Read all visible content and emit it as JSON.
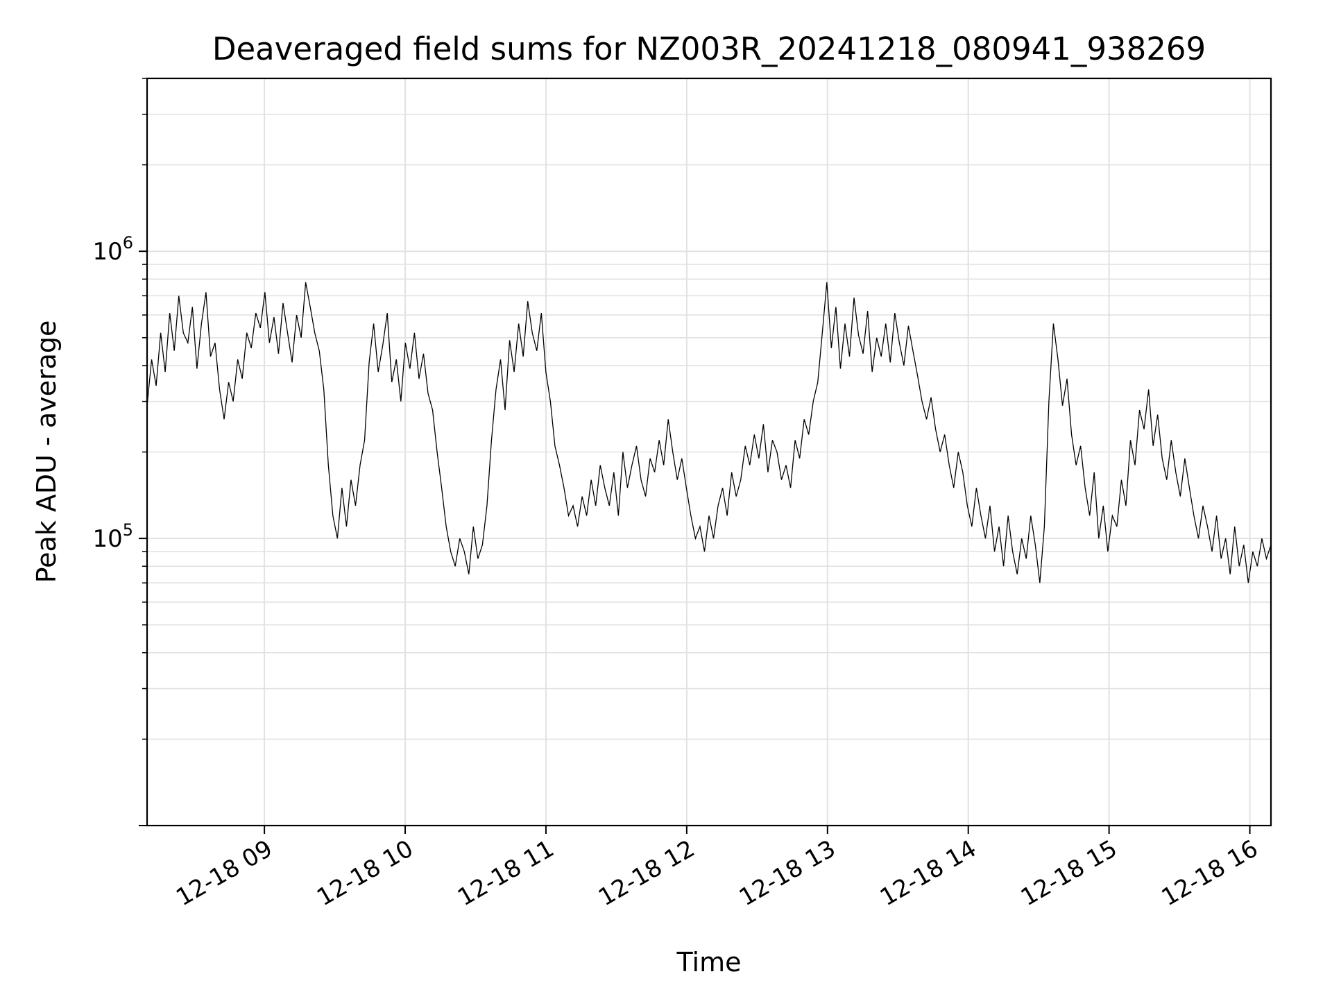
{
  "chart_data": {
    "type": "line",
    "title": "Deaveraged field sums for NZ003R_20241218_080941_938269",
    "xlabel": "Time",
    "ylabel": "Peak ADU - average",
    "yscale": "log",
    "xlim": [
      "2024-12-18 08:10",
      "2024-12-18 16:09"
    ],
    "ylim": [
      10000,
      4000000
    ],
    "grid": true,
    "line_color": "#000000",
    "x_ticks": [
      {
        "value": "2024-12-18 09:00",
        "label": "12-18 09"
      },
      {
        "value": "2024-12-18 10:00",
        "label": "12-18 10"
      },
      {
        "value": "2024-12-18 11:00",
        "label": "12-18 11"
      },
      {
        "value": "2024-12-18 12:00",
        "label": "12-18 12"
      },
      {
        "value": "2024-12-18 13:00",
        "label": "12-18 13"
      },
      {
        "value": "2024-12-18 14:00",
        "label": "12-18 14"
      },
      {
        "value": "2024-12-18 15:00",
        "label": "12-18 15"
      },
      {
        "value": "2024-12-18 16:00",
        "label": "12-18 16"
      }
    ],
    "y_ticks": [
      {
        "value": 100000,
        "base": "10",
        "exp": "5"
      },
      {
        "value": 1000000,
        "base": "10",
        "exp": "6"
      }
    ],
    "series": [
      {
        "x_start": "2024-12-18 08:10",
        "x_end": "2024-12-18 16:09",
        "values": [
          290000,
          420000,
          340000,
          520000,
          380000,
          610000,
          450000,
          700000,
          520000,
          480000,
          640000,
          390000,
          560000,
          720000,
          430000,
          480000,
          330000,
          260000,
          350000,
          300000,
          420000,
          360000,
          520000,
          460000,
          610000,
          540000,
          720000,
          480000,
          590000,
          440000,
          660000,
          520000,
          410000,
          600000,
          500000,
          780000,
          640000,
          520000,
          450000,
          330000,
          180000,
          120000,
          100000,
          150000,
          110000,
          160000,
          130000,
          180000,
          220000,
          410000,
          560000,
          380000,
          470000,
          610000,
          350000,
          420000,
          300000,
          480000,
          390000,
          520000,
          360000,
          440000,
          320000,
          280000,
          200000,
          150000,
          110000,
          90000,
          80000,
          100000,
          90000,
          75000,
          110000,
          85000,
          95000,
          130000,
          220000,
          330000,
          420000,
          280000,
          490000,
          380000,
          560000,
          430000,
          670000,
          520000,
          450000,
          610000,
          380000,
          300000,
          210000,
          180000,
          150000,
          120000,
          130000,
          110000,
          140000,
          120000,
          160000,
          130000,
          180000,
          150000,
          130000,
          170000,
          120000,
          200000,
          150000,
          180000,
          210000,
          160000,
          140000,
          190000,
          170000,
          220000,
          180000,
          260000,
          200000,
          160000,
          190000,
          150000,
          120000,
          100000,
          110000,
          90000,
          120000,
          100000,
          130000,
          150000,
          120000,
          170000,
          140000,
          160000,
          210000,
          180000,
          230000,
          190000,
          250000,
          170000,
          220000,
          200000,
          160000,
          180000,
          150000,
          220000,
          190000,
          260000,
          230000,
          300000,
          350000,
          520000,
          780000,
          460000,
          640000,
          390000,
          560000,
          430000,
          690000,
          510000,
          440000,
          620000,
          380000,
          500000,
          430000,
          560000,
          410000,
          610000,
          480000,
          400000,
          550000,
          450000,
          370000,
          300000,
          260000,
          310000,
          240000,
          200000,
          230000,
          180000,
          150000,
          200000,
          170000,
          130000,
          110000,
          150000,
          120000,
          100000,
          130000,
          90000,
          110000,
          80000,
          120000,
          90000,
          75000,
          100000,
          85000,
          120000,
          95000,
          70000,
          110000,
          300000,
          560000,
          420000,
          290000,
          360000,
          230000,
          180000,
          210000,
          150000,
          120000,
          170000,
          100000,
          130000,
          90000,
          120000,
          110000,
          160000,
          130000,
          220000,
          180000,
          280000,
          240000,
          330000,
          210000,
          270000,
          190000,
          160000,
          220000,
          170000,
          140000,
          190000,
          150000,
          120000,
          100000,
          130000,
          110000,
          90000,
          120000,
          85000,
          100000,
          75000,
          110000,
          80000,
          95000,
          70000,
          90000,
          80000,
          100000,
          85000,
          95000
        ]
      }
    ]
  }
}
